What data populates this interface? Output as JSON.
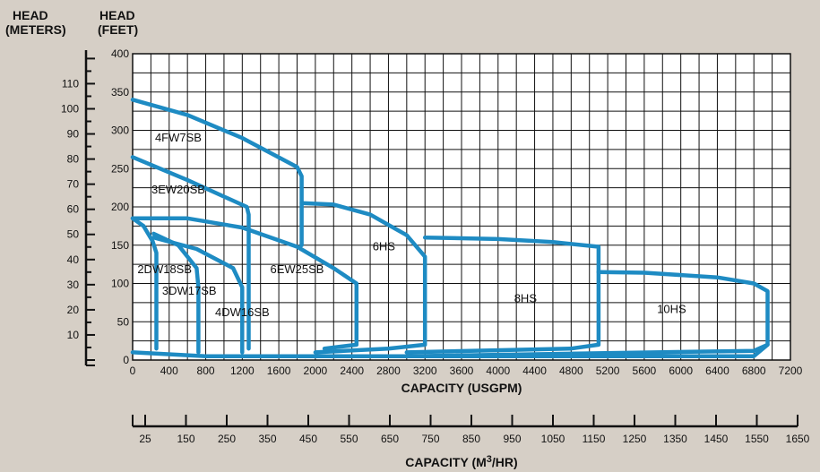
{
  "header": {
    "meters_line1": "HEAD",
    "meters_line2": "(METERS)",
    "feet_line1": "HEAD",
    "feet_line2": "(FEET)"
  },
  "colors": {
    "background": "#d6cfc6",
    "plot_background": "#ffffff",
    "grid": "#111111",
    "curve": "#1e8bc3"
  },
  "chart_data": {
    "type": "line",
    "title": "",
    "xlabel": "CAPACITY (USGPM)",
    "ylabel": "HEAD (FEET)",
    "xlim": [
      0,
      7200
    ],
    "ylim": [
      0,
      400
    ],
    "x_ticks": [
      "0",
      "400",
      "800",
      "1200",
      "1600",
      "2000",
      "2400",
      "2800",
      "3200",
      "3600",
      "4000",
      "4400",
      "4800",
      "5200",
      "5600",
      "6000",
      "6400",
      "6800",
      "7200"
    ],
    "y_ticks_feet": [
      "0",
      "50",
      "100",
      "150",
      "200",
      "250",
      "300",
      "350",
      "400"
    ],
    "meters_axis": {
      "label": "HEAD (METERS)",
      "ticks": [
        "10",
        "20",
        "30",
        "40",
        "50",
        "60",
        "70",
        "80",
        "90",
        "100",
        "110"
      ]
    },
    "m3hr_axis": {
      "label": "CAPACITY (M3/HR)",
      "label_main": "CAPACITY (M",
      "label_sup": "3",
      "label_end": "/HR)",
      "ticks": [
        "25",
        "150",
        "250",
        "350",
        "450",
        "550",
        "650",
        "750",
        "850",
        "950",
        "1050",
        "1150",
        "1250",
        "1350",
        "1450",
        "1550",
        "1650"
      ]
    },
    "grid": true,
    "series": [
      {
        "name": "4FW7SB",
        "label_at": [
          500,
          290
        ],
        "x": [
          0,
          600,
          1200,
          1800,
          1850,
          1850
        ],
        "y": [
          340,
          320,
          290,
          252,
          240,
          150
        ]
      },
      {
        "name": "3EW20SB",
        "label_at": [
          500,
          222
        ],
        "x": [
          0,
          600,
          1250,
          1270,
          1270
        ],
        "y": [
          265,
          235,
          200,
          190,
          15
        ]
      },
      {
        "name": "2DW18SB",
        "label_at": [
          350,
          118
        ],
        "x": [
          0,
          120,
          220,
          260,
          260
        ],
        "y": [
          185,
          175,
          155,
          140,
          15
        ]
      },
      {
        "name": "3DW17SB",
        "label_at": [
          620,
          90
        ],
        "x": [
          230,
          500,
          700,
          720,
          720
        ],
        "y": [
          165,
          150,
          120,
          95,
          10
        ]
      },
      {
        "name": "4DW16SB",
        "label_at": [
          1200,
          62
        ],
        "x": [
          230,
          700,
          1100,
          1200,
          1200
        ],
        "y": [
          160,
          145,
          120,
          95,
          10
        ]
      },
      {
        "name": "6EW25SB",
        "label_at": [
          1800,
          118
        ],
        "x": [
          0,
          600,
          1200,
          1800,
          2200,
          2450,
          2450,
          2100
        ],
        "y": [
          185,
          185,
          173,
          148,
          120,
          100,
          20,
          15
        ]
      },
      {
        "name": "6HS",
        "label_at": [
          2750,
          148
        ],
        "x": [
          1850,
          2200,
          2600,
          3000,
          3200,
          3200,
          2800,
          2000
        ],
        "y": [
          205,
          203,
          190,
          163,
          135,
          20,
          15,
          10
        ]
      },
      {
        "name": "8HS",
        "label_at": [
          4300,
          80
        ],
        "x": [
          3200,
          4000,
          4600,
          5100,
          5100,
          4800,
          3000
        ],
        "y": [
          160,
          158,
          154,
          148,
          20,
          15,
          10
        ]
      },
      {
        "name": "10HS",
        "label_at": [
          5900,
          66
        ],
        "x": [
          5100,
          5600,
          6400,
          6800,
          6950,
          6950,
          6800,
          3000
        ],
        "y": [
          115,
          114,
          108,
          100,
          90,
          20,
          12,
          5
        ]
      },
      {
        "name": "",
        "x": [
          0,
          800,
          3000,
          4800,
          6800,
          6950
        ],
        "y": [
          10,
          5,
          5,
          5,
          5,
          20
        ]
      }
    ]
  }
}
